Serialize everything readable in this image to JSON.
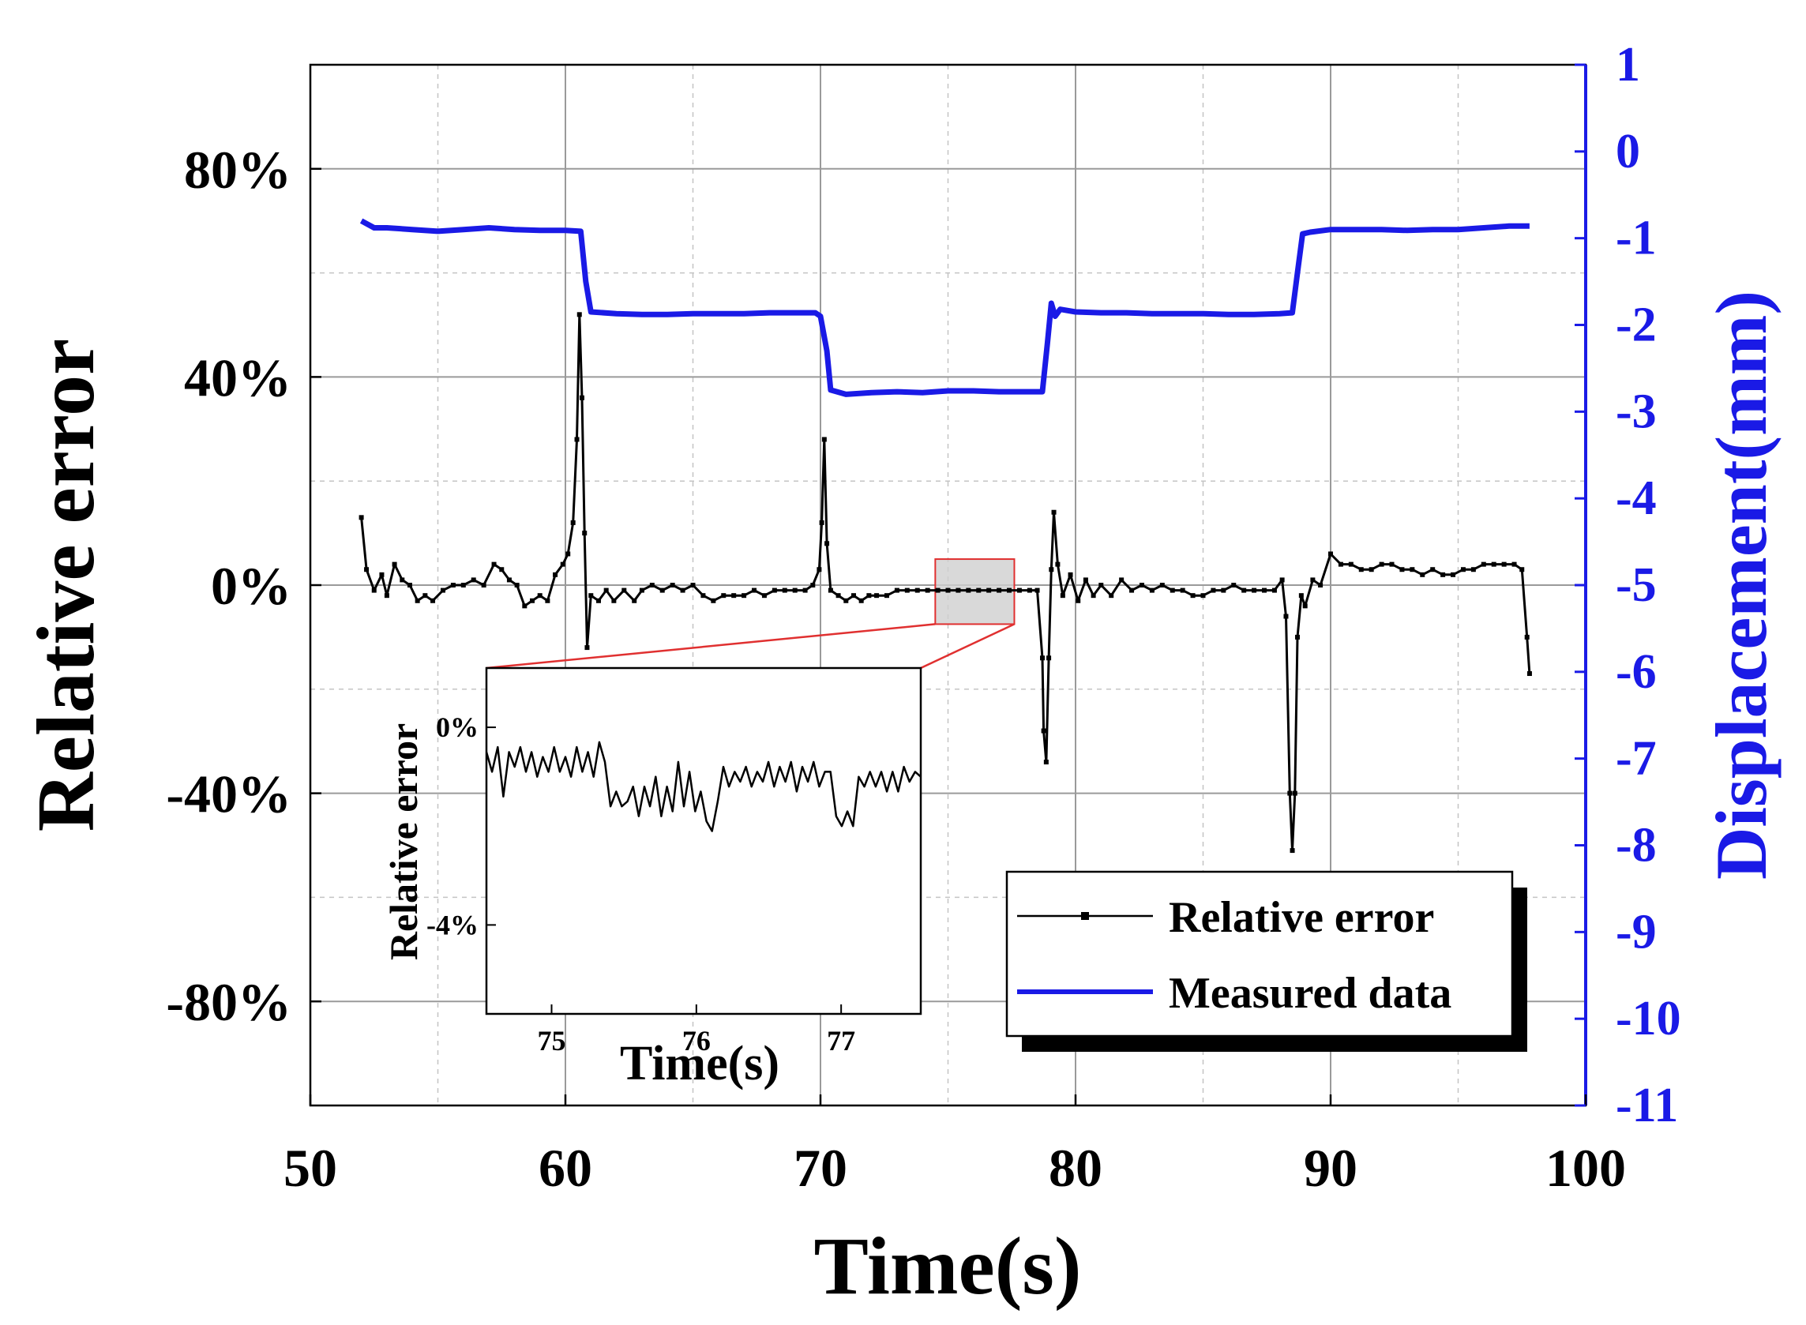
{
  "chart_data": {
    "type": "line",
    "x_label": "Time(s)",
    "y_label_left": "Relative error",
    "y_label_right": "Displacement(mm)",
    "xlim": [
      50,
      100
    ],
    "ylim_left": [
      -100,
      100
    ],
    "ylim_right": [
      -11,
      1
    ],
    "x_ticks": [
      50,
      60,
      70,
      80,
      90,
      100
    ],
    "y_ticks_left": [
      80,
      40,
      0,
      -40,
      -80
    ],
    "y_tick_labels_left": [
      "80%",
      "40%",
      "0%",
      "-40%",
      "-80%"
    ],
    "y_ticks_right": [
      1,
      0,
      -1,
      -2,
      -3,
      -4,
      -5,
      -6,
      -7,
      -8,
      -9,
      -10,
      -11
    ],
    "grid": true,
    "colors": {
      "relative_error": "#000000",
      "measured_data": "#1a1ae6",
      "right_axis": "#1a1ae6",
      "zoom_box": "#e03030"
    },
    "legend": {
      "position": "bottom-right",
      "entries": [
        "Relative error",
        "Measured data"
      ]
    },
    "series": [
      {
        "name": "Relative error",
        "axis": "left",
        "points": [
          [
            52.0,
            13
          ],
          [
            52.2,
            3
          ],
          [
            52.5,
            -1
          ],
          [
            52.8,
            2
          ],
          [
            53.0,
            -2
          ],
          [
            53.3,
            4
          ],
          [
            53.6,
            1
          ],
          [
            53.9,
            0
          ],
          [
            54.2,
            -3
          ],
          [
            54.5,
            -2
          ],
          [
            54.8,
            -3
          ],
          [
            55.2,
            -1
          ],
          [
            55.6,
            0
          ],
          [
            56.0,
            0
          ],
          [
            56.4,
            1
          ],
          [
            56.8,
            0
          ],
          [
            57.2,
            4
          ],
          [
            57.5,
            3
          ],
          [
            57.8,
            1
          ],
          [
            58.1,
            0
          ],
          [
            58.4,
            -4
          ],
          [
            58.7,
            -3
          ],
          [
            59.0,
            -2
          ],
          [
            59.3,
            -3
          ],
          [
            59.6,
            2
          ],
          [
            59.9,
            4
          ],
          [
            60.1,
            6
          ],
          [
            60.3,
            12
          ],
          [
            60.45,
            28
          ],
          [
            60.55,
            52
          ],
          [
            60.65,
            36
          ],
          [
            60.75,
            10
          ],
          [
            60.85,
            -12
          ],
          [
            61.0,
            -2
          ],
          [
            61.3,
            -3
          ],
          [
            61.6,
            -1
          ],
          [
            61.9,
            -3
          ],
          [
            62.3,
            -1
          ],
          [
            62.7,
            -3
          ],
          [
            63.0,
            -1
          ],
          [
            63.4,
            0
          ],
          [
            63.8,
            -1
          ],
          [
            64.2,
            0
          ],
          [
            64.6,
            -1
          ],
          [
            65.0,
            0
          ],
          [
            65.4,
            -2
          ],
          [
            65.8,
            -3
          ],
          [
            66.2,
            -2
          ],
          [
            66.6,
            -2
          ],
          [
            67.0,
            -2
          ],
          [
            67.4,
            -1
          ],
          [
            67.8,
            -2
          ],
          [
            68.2,
            -1
          ],
          [
            68.6,
            -1
          ],
          [
            69.0,
            -1
          ],
          [
            69.4,
            -1
          ],
          [
            69.7,
            0
          ],
          [
            69.95,
            3
          ],
          [
            70.05,
            12
          ],
          [
            70.15,
            28
          ],
          [
            70.25,
            8
          ],
          [
            70.4,
            -1
          ],
          [
            70.7,
            -2
          ],
          [
            71.0,
            -3
          ],
          [
            71.3,
            -2
          ],
          [
            71.6,
            -3
          ],
          [
            71.9,
            -2
          ],
          [
            72.2,
            -2
          ],
          [
            72.6,
            -2
          ],
          [
            73.0,
            -1
          ],
          [
            73.4,
            -1
          ],
          [
            73.8,
            -1
          ],
          [
            74.2,
            -1
          ],
          [
            74.6,
            -1
          ],
          [
            75.0,
            -1
          ],
          [
            75.4,
            -1
          ],
          [
            75.8,
            -1
          ],
          [
            76.2,
            -1
          ],
          [
            76.6,
            -1
          ],
          [
            77.0,
            -1
          ],
          [
            77.4,
            -1
          ],
          [
            77.8,
            -1
          ],
          [
            78.2,
            -1
          ],
          [
            78.5,
            -1
          ],
          [
            78.7,
            -14
          ],
          [
            78.75,
            -28
          ],
          [
            78.85,
            -34
          ],
          [
            78.95,
            -14
          ],
          [
            79.05,
            3
          ],
          [
            79.15,
            14
          ],
          [
            79.3,
            4
          ],
          [
            79.5,
            -2
          ],
          [
            79.8,
            2
          ],
          [
            80.1,
            -3
          ],
          [
            80.4,
            1
          ],
          [
            80.7,
            -2
          ],
          [
            81.0,
            0
          ],
          [
            81.4,
            -2
          ],
          [
            81.8,
            1
          ],
          [
            82.2,
            -1
          ],
          [
            82.6,
            0
          ],
          [
            83.0,
            -1
          ],
          [
            83.4,
            0
          ],
          [
            83.8,
            -1
          ],
          [
            84.2,
            -1
          ],
          [
            84.6,
            -2
          ],
          [
            85.0,
            -2
          ],
          [
            85.4,
            -1
          ],
          [
            85.8,
            -1
          ],
          [
            86.2,
            0
          ],
          [
            86.6,
            -1
          ],
          [
            87.0,
            -1
          ],
          [
            87.4,
            -1
          ],
          [
            87.8,
            -1
          ],
          [
            88.1,
            1
          ],
          [
            88.25,
            -6
          ],
          [
            88.4,
            -40
          ],
          [
            88.5,
            -51
          ],
          [
            88.6,
            -40
          ],
          [
            88.7,
            -10
          ],
          [
            88.85,
            -2
          ],
          [
            89.0,
            -4
          ],
          [
            89.3,
            1
          ],
          [
            89.6,
            0
          ],
          [
            90.0,
            6
          ],
          [
            90.4,
            4
          ],
          [
            90.8,
            4
          ],
          [
            91.2,
            3
          ],
          [
            91.6,
            3
          ],
          [
            92.0,
            4
          ],
          [
            92.4,
            4
          ],
          [
            92.8,
            3
          ],
          [
            93.2,
            3
          ],
          [
            93.6,
            2
          ],
          [
            94.0,
            3
          ],
          [
            94.4,
            2
          ],
          [
            94.8,
            2
          ],
          [
            95.2,
            3
          ],
          [
            95.6,
            3
          ],
          [
            96.0,
            4
          ],
          [
            96.4,
            4
          ],
          [
            96.8,
            4
          ],
          [
            97.2,
            4
          ],
          [
            97.5,
            3
          ],
          [
            97.7,
            -10
          ],
          [
            97.8,
            -17
          ]
        ]
      },
      {
        "name": "Measured data",
        "axis": "right",
        "points": [
          [
            52.0,
            -0.8
          ],
          [
            52.5,
            -0.88
          ],
          [
            53.0,
            -0.88
          ],
          [
            54.0,
            -0.9
          ],
          [
            55.0,
            -0.92
          ],
          [
            56.0,
            -0.9
          ],
          [
            57.0,
            -0.88
          ],
          [
            58.0,
            -0.9
          ],
          [
            59.0,
            -0.91
          ],
          [
            60.0,
            -0.91
          ],
          [
            60.6,
            -0.92
          ],
          [
            60.8,
            -1.5
          ],
          [
            61.0,
            -1.85
          ],
          [
            62.0,
            -1.87
          ],
          [
            63.0,
            -1.88
          ],
          [
            64.0,
            -1.88
          ],
          [
            65.0,
            -1.87
          ],
          [
            66.0,
            -1.87
          ],
          [
            67.0,
            -1.87
          ],
          [
            68.0,
            -1.86
          ],
          [
            69.0,
            -1.86
          ],
          [
            69.8,
            -1.86
          ],
          [
            70.0,
            -1.9
          ],
          [
            70.25,
            -2.3
          ],
          [
            70.4,
            -2.75
          ],
          [
            71.0,
            -2.8
          ],
          [
            72.0,
            -2.78
          ],
          [
            73.0,
            -2.77
          ],
          [
            74.0,
            -2.78
          ],
          [
            75.0,
            -2.76
          ],
          [
            76.0,
            -2.76
          ],
          [
            77.0,
            -2.77
          ],
          [
            78.0,
            -2.77
          ],
          [
            78.7,
            -2.77
          ],
          [
            78.9,
            -2.2
          ],
          [
            79.05,
            -1.75
          ],
          [
            79.2,
            -1.9
          ],
          [
            79.4,
            -1.82
          ],
          [
            80.0,
            -1.85
          ],
          [
            81.0,
            -1.86
          ],
          [
            82.0,
            -1.86
          ],
          [
            83.0,
            -1.87
          ],
          [
            84.0,
            -1.87
          ],
          [
            85.0,
            -1.87
          ],
          [
            86.0,
            -1.88
          ],
          [
            87.0,
            -1.88
          ],
          [
            88.0,
            -1.87
          ],
          [
            88.5,
            -1.86
          ],
          [
            88.7,
            -1.4
          ],
          [
            88.9,
            -0.95
          ],
          [
            89.2,
            -0.93
          ],
          [
            90.0,
            -0.9
          ],
          [
            91.0,
            -0.9
          ],
          [
            92.0,
            -0.9
          ],
          [
            93.0,
            -0.91
          ],
          [
            94.0,
            -0.9
          ],
          [
            95.0,
            -0.9
          ],
          [
            96.0,
            -0.88
          ],
          [
            97.0,
            -0.86
          ],
          [
            97.8,
            -0.86
          ]
        ]
      }
    ],
    "inset": {
      "x_label": "Time(s)",
      "y_label": "Relative error",
      "xlim": [
        74.55,
        77.55
      ],
      "ylim": [
        -5.8,
        1.2
      ],
      "x_ticks": [
        75,
        76,
        77
      ],
      "y_ticks": [
        0,
        -4
      ],
      "y_tick_labels": [
        "0%",
        "-4%"
      ],
      "zoom_region": {
        "x": [
          74.5,
          77.6
        ],
        "y": [
          -7.5,
          5
        ]
      },
      "values": [
        -0.5,
        -0.9,
        -0.4,
        -1.4,
        -0.5,
        -0.8,
        -0.4,
        -0.9,
        -0.5,
        -1.0,
        -0.6,
        -0.9,
        -0.4,
        -0.9,
        -0.6,
        -1.0,
        -0.4,
        -0.9,
        -0.5,
        -1.0,
        -0.3,
        -0.7,
        -1.6,
        -1.3,
        -1.6,
        -1.5,
        -1.2,
        -1.8,
        -1.2,
        -1.6,
        -1.0,
        -1.8,
        -1.2,
        -1.7,
        -0.7,
        -1.6,
        -0.9,
        -1.7,
        -1.3,
        -1.9,
        -2.1,
        -1.5,
        -0.8,
        -1.2,
        -0.9,
        -1.1,
        -0.8,
        -1.2,
        -0.9,
        -1.1,
        -0.7,
        -1.2,
        -0.8,
        -1.1,
        -0.7,
        -1.3,
        -0.8,
        -1.1,
        -0.7,
        -1.2,
        -0.9,
        -0.9,
        -1.8,
        -2.0,
        -1.7,
        -2.0,
        -1.0,
        -1.2,
        -0.9,
        -1.2,
        -0.9,
        -1.3,
        -0.9,
        -1.3,
        -0.8,
        -1.1,
        -0.9,
        -1.0
      ]
    }
  }
}
